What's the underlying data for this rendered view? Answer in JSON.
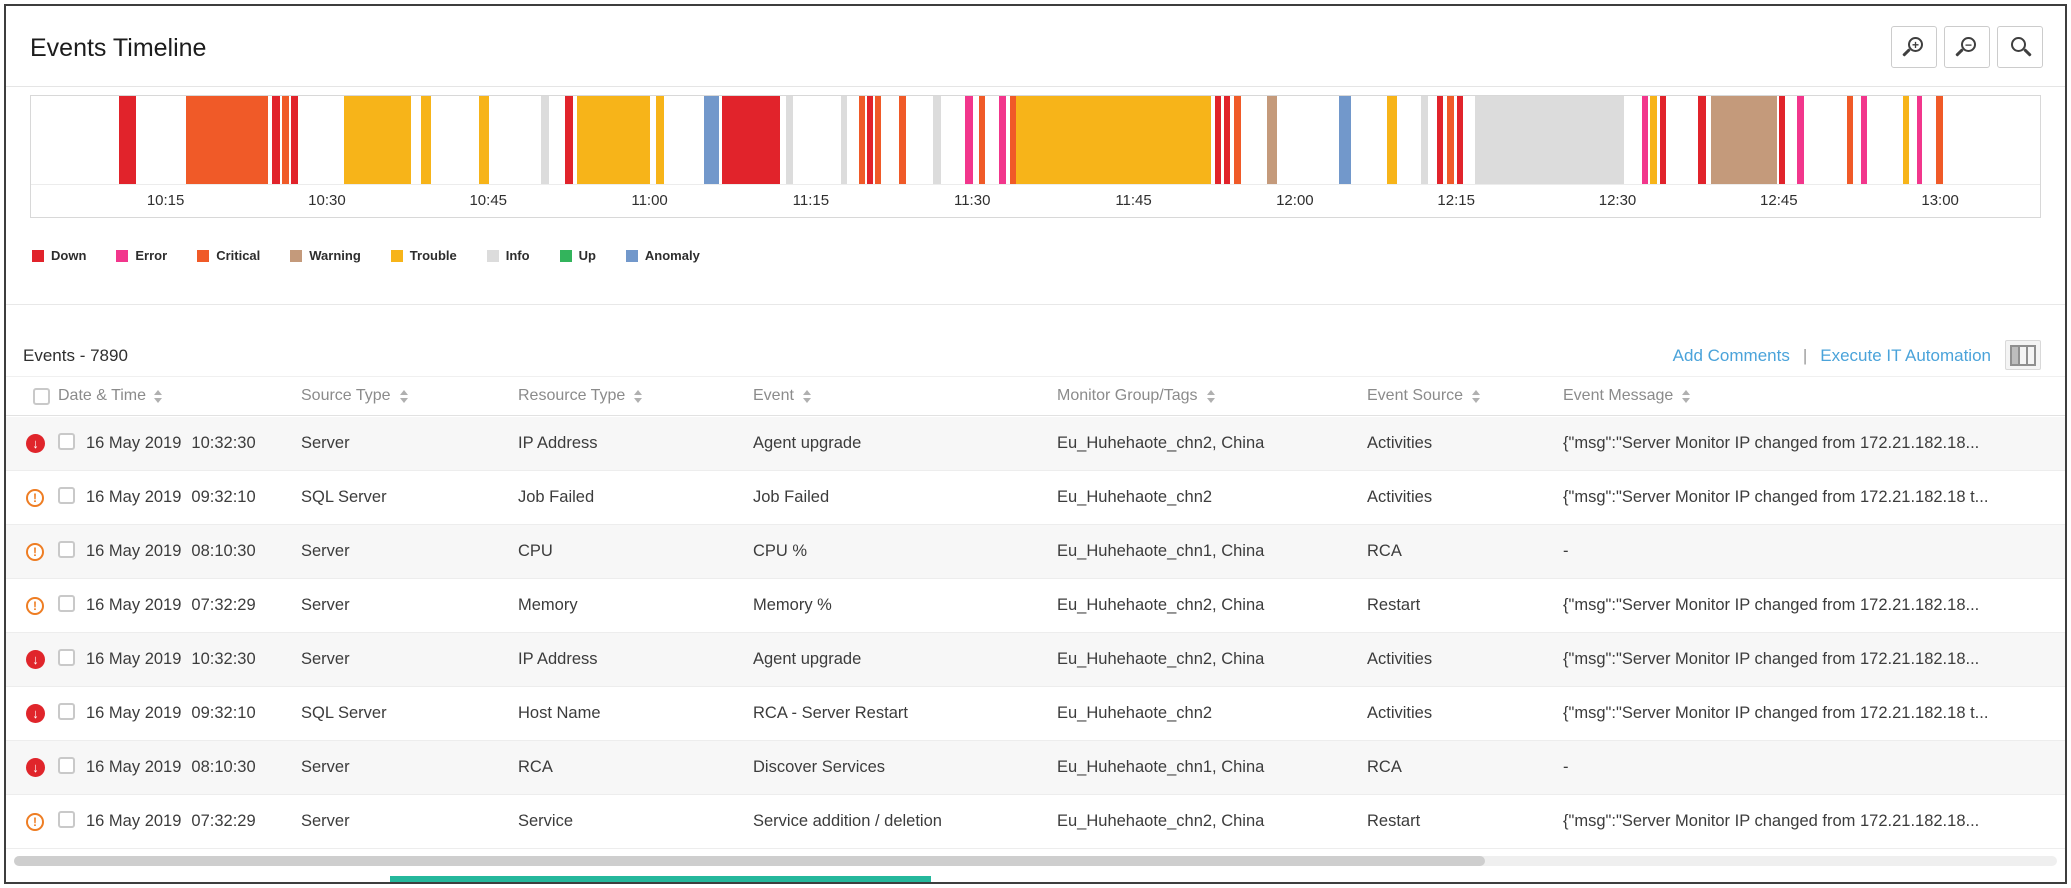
{
  "header": {
    "title": "Events Timeline",
    "zoom_buttons": [
      {
        "name": "zoom-in",
        "glyph": "+"
      },
      {
        "name": "zoom-out",
        "glyph": "−"
      },
      {
        "name": "zoom-reset",
        "glyph": ""
      }
    ]
  },
  "timeline": {
    "ticks": [
      "10:15",
      "10:30",
      "10:45",
      "11:00",
      "11:15",
      "11:30",
      "11:45",
      "12:00",
      "12:15",
      "12:30",
      "12:45",
      "13:00"
    ],
    "tick_start": 6.7,
    "tick_step": 8.03,
    "colors": {
      "down": "#e1232b",
      "error": "#f2368c",
      "critical": "#f05a28",
      "warning": "#c49a7b",
      "trouble": "#f7b419",
      "info": "#dcdcdc",
      "up": "#33b45c",
      "anomaly": "#7298cb"
    },
    "legend": [
      {
        "type": "down",
        "label": "Down"
      },
      {
        "type": "error",
        "label": "Error"
      },
      {
        "type": "critical",
        "label": "Critical"
      },
      {
        "type": "warning",
        "label": "Warning"
      },
      {
        "type": "trouble",
        "label": "Trouble"
      },
      {
        "type": "info",
        "label": "Info"
      },
      {
        "type": "up",
        "label": "Up"
      },
      {
        "type": "anomaly",
        "label": "Anomaly"
      }
    ],
    "segments": [
      [
        4.4,
        0.85,
        "down"
      ],
      [
        7.7,
        4.1,
        "critical"
      ],
      [
        12.0,
        0.4,
        "down"
      ],
      [
        12.5,
        0.35,
        "critical"
      ],
      [
        12.95,
        0.35,
        "down"
      ],
      [
        15.6,
        3.3,
        "trouble"
      ],
      [
        19.4,
        0.5,
        "trouble"
      ],
      [
        22.3,
        0.5,
        "trouble"
      ],
      [
        25.4,
        0.4,
        "info"
      ],
      [
        26.6,
        0.4,
        "down"
      ],
      [
        27.2,
        3.6,
        "trouble"
      ],
      [
        31.1,
        0.4,
        "trouble"
      ],
      [
        33.5,
        0.75,
        "anomaly"
      ],
      [
        34.4,
        2.9,
        "down"
      ],
      [
        37.6,
        0.35,
        "info"
      ],
      [
        40.3,
        0.3,
        "info"
      ],
      [
        41.2,
        0.3,
        "critical"
      ],
      [
        41.6,
        0.3,
        "down"
      ],
      [
        42.0,
        0.3,
        "critical"
      ],
      [
        43.2,
        0.35,
        "critical"
      ],
      [
        44.9,
        0.4,
        "info"
      ],
      [
        46.5,
        0.4,
        "error"
      ],
      [
        47.2,
        0.3,
        "critical"
      ],
      [
        48.2,
        0.35,
        "error"
      ],
      [
        48.75,
        0.3,
        "critical"
      ],
      [
        49.05,
        9.7,
        "trouble"
      ],
      [
        58.95,
        0.3,
        "down"
      ],
      [
        59.4,
        0.3,
        "down"
      ],
      [
        59.9,
        0.35,
        "critical"
      ],
      [
        61.5,
        0.5,
        "warning"
      ],
      [
        65.1,
        0.6,
        "anomaly"
      ],
      [
        67.5,
        0.5,
        "trouble"
      ],
      [
        69.2,
        0.35,
        "info"
      ],
      [
        70.0,
        0.3,
        "down"
      ],
      [
        70.5,
        0.35,
        "critical"
      ],
      [
        71.0,
        0.3,
        "down"
      ],
      [
        71.9,
        7.4,
        "info"
      ],
      [
        80.2,
        0.3,
        "error"
      ],
      [
        80.6,
        0.35,
        "trouble"
      ],
      [
        81.1,
        0.3,
        "down"
      ],
      [
        83.0,
        0.35,
        "down"
      ],
      [
        83.6,
        3.3,
        "warning"
      ],
      [
        87.0,
        0.3,
        "down"
      ],
      [
        87.9,
        0.35,
        "error"
      ],
      [
        90.4,
        0.3,
        "critical"
      ],
      [
        91.1,
        0.3,
        "error"
      ],
      [
        93.2,
        0.3,
        "trouble"
      ],
      [
        93.9,
        0.25,
        "error"
      ],
      [
        94.8,
        0.35,
        "critical"
      ]
    ]
  },
  "events": {
    "title": "Events - 7890",
    "actions": {
      "add_comments": "Add Comments",
      "separator": "|",
      "execute_it": "Execute IT Automation"
    },
    "columns": [
      {
        "label": "Date & Time"
      },
      {
        "label": "Source Type"
      },
      {
        "label": "Resource Type"
      },
      {
        "label": "Event"
      },
      {
        "label": "Monitor Group/Tags"
      },
      {
        "label": "Event Source"
      },
      {
        "label": "Event Message"
      }
    ],
    "severity_glyphs": {
      "down": "↓",
      "trouble": "!"
    },
    "rows": [
      {
        "severity": "down",
        "date": "16 May 2019",
        "time": "10:32:30",
        "source_type": "Server",
        "resource_type": "IP Address",
        "event": "Agent upgrade",
        "monitor_group": "Eu_Huhehaote_chn2, China",
        "event_source": "Activities",
        "event_message": "{\"msg\":\"Server Monitor IP changed from 172.21.182.18..."
      },
      {
        "severity": "trouble",
        "date": "16 May 2019",
        "time": "09:32:10",
        "source_type": "SQL Server",
        "resource_type": "Job Failed",
        "event": "Job Failed",
        "monitor_group": "Eu_Huhehaote_chn2",
        "event_source": "Activities",
        "event_message": "{\"msg\":\"Server Monitor IP changed from 172.21.182.18 t..."
      },
      {
        "severity": "trouble",
        "date": "16 May 2019",
        "time": "08:10:30",
        "source_type": "Server",
        "resource_type": "CPU",
        "event": "CPU %",
        "monitor_group": "Eu_Huhehaote_chn1, China",
        "event_source": "RCA",
        "event_message": "-"
      },
      {
        "severity": "trouble",
        "date": "16 May 2019",
        "time": "07:32:29",
        "source_type": "Server",
        "resource_type": "Memory",
        "event": "Memory %",
        "monitor_group": "Eu_Huhehaote_chn2, China",
        "event_source": "Restart",
        "event_message": "{\"msg\":\"Server Monitor IP changed from 172.21.182.18..."
      },
      {
        "severity": "down",
        "date": "16 May 2019",
        "time": "10:32:30",
        "source_type": "Server",
        "resource_type": "IP Address",
        "event": "Agent upgrade",
        "monitor_group": "Eu_Huhehaote_chn2, China",
        "event_source": "Activities",
        "event_message": "{\"msg\":\"Server Monitor IP changed from 172.21.182.18..."
      },
      {
        "severity": "down",
        "date": "16 May 2019",
        "time": "09:32:10",
        "source_type": "SQL Server",
        "resource_type": "Host Name",
        "event": "RCA - Server Restart",
        "monitor_group": "Eu_Huhehaote_chn2",
        "event_source": "Activities",
        "event_message": "{\"msg\":\"Server Monitor IP changed from 172.21.182.18 t..."
      },
      {
        "severity": "down",
        "date": "16 May 2019",
        "time": "08:10:30",
        "source_type": "Server",
        "resource_type": "RCA",
        "event": "Discover Services",
        "monitor_group": "Eu_Huhehaote_chn1, China",
        "event_source": "RCA",
        "event_message": "-"
      },
      {
        "severity": "trouble",
        "date": "16 May 2019",
        "time": "07:32:29",
        "source_type": "Server",
        "resource_type": "Service",
        "event": "Service addition / deletion",
        "monitor_group": "Eu_Huhehaote_chn2, China",
        "event_source": "Restart",
        "event_message": "{\"msg\":\"Server Monitor IP changed from 172.21.182.18..."
      }
    ]
  }
}
